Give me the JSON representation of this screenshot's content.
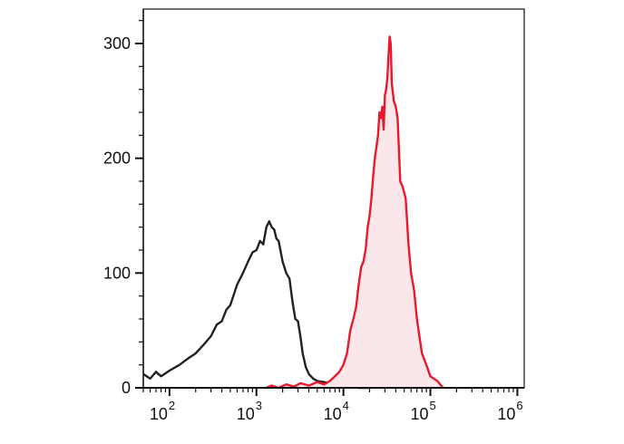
{
  "chart_data": {
    "type": "area",
    "x_scale": "log",
    "xlim": [
      50,
      1200000
    ],
    "ylim": [
      0,
      330
    ],
    "x_ticks": [
      {
        "base": "10",
        "exp": "2",
        "value": 100
      },
      {
        "base": "10",
        "exp": "3",
        "value": 1000
      },
      {
        "base": "10",
        "exp": "4",
        "value": 10000
      },
      {
        "base": "10",
        "exp": "5",
        "value": 100000
      },
      {
        "base": "10",
        "exp": "6",
        "value": 1000000
      }
    ],
    "y_ticks": [
      {
        "label": "0",
        "value": 0
      },
      {
        "label": "100",
        "value": 100
      },
      {
        "label": "200",
        "value": 200
      },
      {
        "label": "300",
        "value": 300
      }
    ],
    "grid": false,
    "series": [
      {
        "color": "#222222",
        "fill": "none",
        "x": [
          50,
          60,
          70,
          80,
          100,
          130,
          160,
          200,
          250,
          300,
          350,
          400,
          450,
          500,
          600,
          700,
          800,
          900,
          1000,
          1100,
          1200,
          1300,
          1400,
          1500,
          1600,
          1700,
          1800,
          2000,
          2200,
          2400,
          2600,
          2800,
          3000,
          3200,
          3400,
          3700,
          4000,
          4500,
          5000,
          6000,
          7000,
          8000,
          9000,
          10000,
          12000,
          15000,
          20000
        ],
        "y": [
          12,
          8,
          14,
          10,
          15,
          20,
          25,
          30,
          38,
          45,
          55,
          58,
          68,
          72,
          90,
          100,
          110,
          118,
          120,
          128,
          125,
          140,
          145,
          140,
          138,
          130,
          128,
          110,
          100,
          95,
          75,
          60,
          58,
          45,
          30,
          18,
          12,
          8,
          6,
          5,
          4,
          3,
          2,
          2,
          1,
          0,
          0
        ]
      },
      {
        "color": "#e8192c",
        "fill": "#fbe6e9",
        "x": [
          1300,
          1500,
          1800,
          2200,
          2700,
          3200,
          4000,
          5000,
          6000,
          7000,
          8000,
          9000,
          10000,
          11000,
          12000,
          13000,
          14000,
          15000,
          16000,
          17000,
          18000,
          19000,
          20000,
          21000,
          22000,
          23000,
          24000,
          25000,
          26000,
          27000,
          28000,
          29000,
          30000,
          31000,
          32000,
          33000,
          34000,
          35000,
          36000,
          38000,
          40000,
          42000,
          45000,
          48000,
          52000,
          56000,
          60000,
          65000,
          70000,
          80000,
          90000,
          100000,
          120000,
          140000
        ],
        "y": [
          0,
          2,
          0,
          3,
          1,
          4,
          2,
          5,
          3,
          6,
          10,
          14,
          20,
          30,
          50,
          60,
          70,
          90,
          105,
          110,
          120,
          140,
          150,
          165,
          185,
          200,
          210,
          220,
          240,
          235,
          245,
          225,
          255,
          260,
          270,
          290,
          306,
          300,
          265,
          250,
          245,
          235,
          180,
          175,
          165,
          125,
          100,
          85,
          60,
          30,
          20,
          10,
          6,
          0
        ]
      }
    ]
  }
}
